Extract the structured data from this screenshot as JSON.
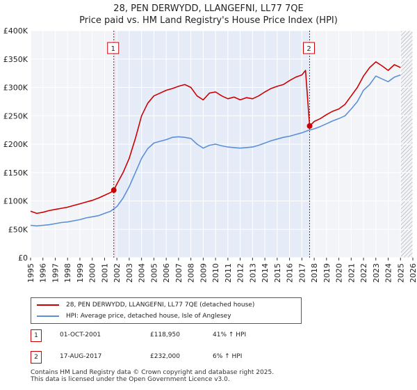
{
  "chart_data": {
    "type": "line",
    "title": "28, PEN DERWYDD, LLANGEFNI, LL77 7QE",
    "subtitle": "Price paid vs. HM Land Registry's House Price Index (HPI)",
    "x_range": [
      1995,
      2026
    ],
    "ylim": [
      0,
      400000
    ],
    "y_ticks": [
      0,
      50000,
      100000,
      150000,
      200000,
      250000,
      300000,
      350000,
      400000
    ],
    "y_tick_labels": [
      "£0",
      "£50K",
      "£100K",
      "£150K",
      "£200K",
      "£250K",
      "£300K",
      "£350K",
      "£400K"
    ],
    "x_ticks": [
      1995,
      1996,
      1997,
      1998,
      1999,
      2000,
      2001,
      2002,
      2003,
      2004,
      2005,
      2006,
      2007,
      2008,
      2009,
      2010,
      2011,
      2012,
      2013,
      2014,
      2015,
      2016,
      2017,
      2018,
      2019,
      2020,
      2021,
      2022,
      2023,
      2024,
      2025,
      2026
    ],
    "x_tick_labels": [
      "1995",
      "1996",
      "1997",
      "1998",
      "1999",
      "2000",
      "2001",
      "2002",
      "2003",
      "2004",
      "2005",
      "2006",
      "2007",
      "2008",
      "2009",
      "2010",
      "2011",
      "2012",
      "2013",
      "2014",
      "2015",
      "2016",
      "2017",
      "2018",
      "2019",
      "2020",
      "2021",
      "2022",
      "2023",
      "2024",
      "2025",
      "2026"
    ],
    "shaded_period": [
      2001.75,
      2017.63
    ],
    "hatched_from": 2025.0,
    "series": [
      {
        "name": "28, PEN DERWYDD, LLANGEFNI, LL77 7QE (detached house)",
        "color": "#cc0000",
        "x": [
          1995,
          1995.5,
          1996,
          1996.5,
          1997,
          1997.5,
          1998,
          1998.5,
          1999,
          1999.5,
          2000,
          2000.5,
          2001,
          2001.5,
          2001.75,
          2002,
          2002.5,
          2003,
          2003.5,
          2004,
          2004.5,
          2005,
          2005.5,
          2006,
          2006.5,
          2007,
          2007.5,
          2008,
          2008.5,
          2009,
          2009.5,
          2010,
          2010.5,
          2011,
          2011.5,
          2012,
          2012.5,
          2013,
          2013.5,
          2014,
          2014.5,
          2015,
          2015.5,
          2016,
          2016.5,
          2017,
          2017.3,
          2017.63,
          2018,
          2018.5,
          2019,
          2019.5,
          2020,
          2020.5,
          2021,
          2021.5,
          2022,
          2022.5,
          2023,
          2023.5,
          2024,
          2024.5,
          2025
        ],
        "values": [
          82000,
          78000,
          80000,
          83000,
          85000,
          87000,
          89000,
          92000,
          95000,
          98000,
          101000,
          105000,
          110000,
          115000,
          118950,
          130000,
          150000,
          175000,
          210000,
          250000,
          272000,
          285000,
          290000,
          295000,
          298000,
          302000,
          305000,
          300000,
          285000,
          278000,
          290000,
          292000,
          285000,
          280000,
          283000,
          278000,
          282000,
          280000,
          285000,
          292000,
          298000,
          302000,
          305000,
          312000,
          318000,
          322000,
          330000,
          232000,
          240000,
          245000,
          252000,
          258000,
          262000,
          270000,
          285000,
          300000,
          320000,
          335000,
          345000,
          338000,
          330000,
          340000,
          335000
        ]
      },
      {
        "name": "HPI: Average price, detached house, Isle of Anglesey",
        "color": "#5b8fd6",
        "x": [
          1995,
          1995.5,
          1996,
          1996.5,
          1997,
          1997.5,
          1998,
          1998.5,
          1999,
          1999.5,
          2000,
          2000.5,
          2001,
          2001.5,
          2002,
          2002.5,
          2003,
          2003.5,
          2004,
          2004.5,
          2005,
          2005.5,
          2006,
          2006.5,
          2007,
          2007.5,
          2008,
          2008.5,
          2009,
          2009.5,
          2010,
          2010.5,
          2011,
          2011.5,
          2012,
          2012.5,
          2013,
          2013.5,
          2014,
          2014.5,
          2015,
          2015.5,
          2016,
          2016.5,
          2017,
          2017.5,
          2018,
          2018.5,
          2019,
          2019.5,
          2020,
          2020.5,
          2021,
          2021.5,
          2022,
          2022.5,
          2023,
          2023.5,
          2024,
          2024.5,
          2025
        ],
        "values": [
          57000,
          56000,
          57000,
          58000,
          60000,
          62000,
          63000,
          65000,
          67000,
          70000,
          72000,
          74000,
          78000,
          82000,
          90000,
          105000,
          125000,
          150000,
          175000,
          192000,
          202000,
          205000,
          208000,
          212000,
          213000,
          212000,
          210000,
          200000,
          193000,
          198000,
          200000,
          197000,
          195000,
          194000,
          193000,
          194000,
          195000,
          198000,
          202000,
          206000,
          209000,
          212000,
          214000,
          217000,
          220000,
          224000,
          227000,
          231000,
          236000,
          241000,
          245000,
          250000,
          262000,
          275000,
          295000,
          305000,
          320000,
          315000,
          310000,
          318000,
          322000
        ]
      }
    ],
    "sales": [
      {
        "label": "1",
        "x": 2001.75,
        "value": 118950
      },
      {
        "label": "2",
        "x": 2017.63,
        "value": 232000
      }
    ]
  },
  "legend": {
    "property_label": "28, PEN DERWYDD, LLANGEFNI, LL77 7QE (detached house)",
    "hpi_label": "HPI: Average price, detached house, Isle of Anglesey",
    "property_color": "#cc0000",
    "hpi_color": "#5b8fd6"
  },
  "transactions": [
    {
      "num": "1",
      "date": "01-OCT-2001",
      "price": "£118,950",
      "hpi": "41% ↑ HPI"
    },
    {
      "num": "2",
      "date": "17-AUG-2017",
      "price": "£232,000",
      "hpi": "6% ↑ HPI"
    }
  ],
  "footer": {
    "line1": "Contains HM Land Registry data © Crown copyright and database right 2025.",
    "line2": "This data is licensed under the Open Government Licence v3.0."
  }
}
